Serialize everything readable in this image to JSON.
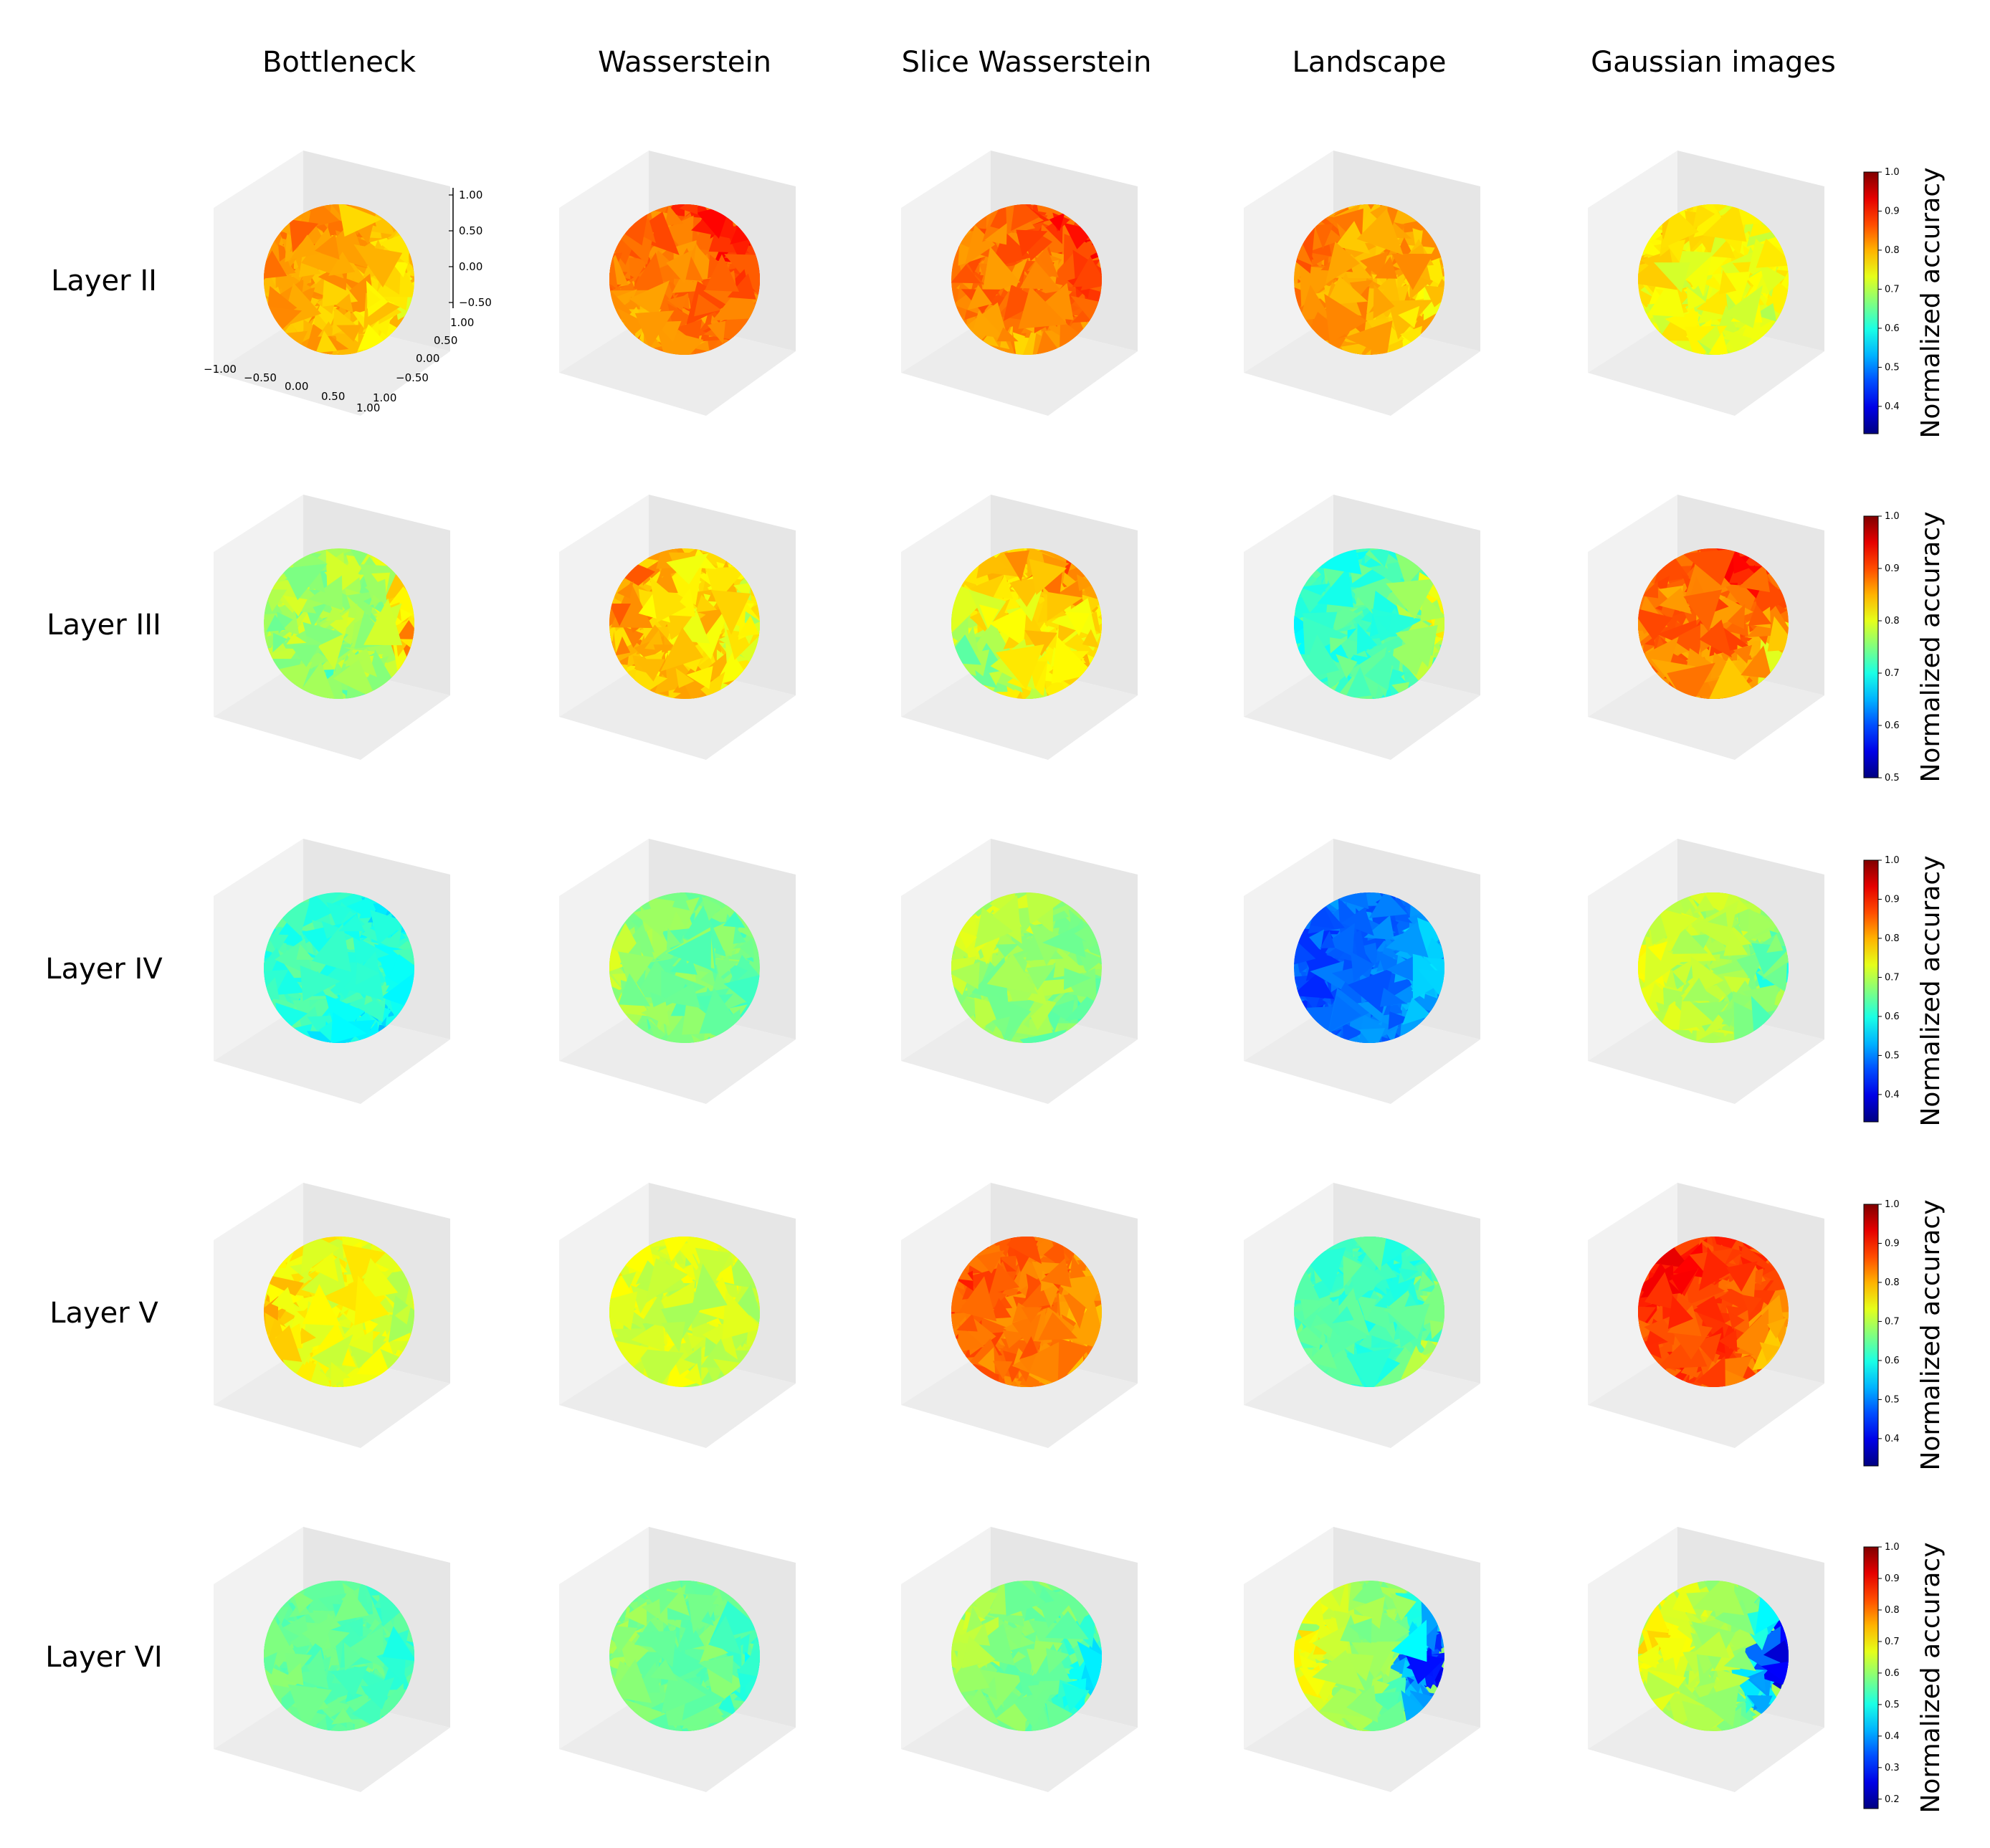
{
  "chart_data": {
    "type": "heatmap",
    "description_type": "grid of 3D sphere surfaces colored by normalized accuracy",
    "column_titles": [
      "Bottleneck",
      "Wasserstein",
      "Slice Wasserstein",
      "Landscape",
      "Gaussian images"
    ],
    "row_titles": [
      "Layer II",
      "Layer III",
      "Layer IV",
      "Layer V",
      "Layer VI"
    ],
    "colormap": "jet",
    "axis_ticks": {
      "z": [
        "1.00",
        "0.50",
        "0.00",
        "−0.50"
      ],
      "y": [
        "1.00",
        "0.50",
        "0.00",
        "−0.50",
        "1.00"
      ],
      "x": [
        "−1.00",
        "−0.50",
        "0.00",
        "0.50",
        "1.00"
      ]
    },
    "colorbars": [
      {
        "label": "Normalized accuracy",
        "range": [
          0.33,
          1.0
        ],
        "ticks": [
          "0.4",
          "0.5",
          "0.6",
          "0.7",
          "0.8",
          "0.9",
          "1.0"
        ]
      },
      {
        "label": "Normalized accuracy",
        "range": [
          0.5,
          1.0
        ],
        "ticks": [
          "0.5",
          "0.6",
          "0.7",
          "0.8",
          "0.9",
          "1.0"
        ]
      },
      {
        "label": "Normalized accuracy",
        "range": [
          0.33,
          1.0
        ],
        "ticks": [
          "0.4",
          "0.5",
          "0.6",
          "0.7",
          "0.8",
          "0.9",
          "1.0"
        ]
      },
      {
        "label": "Normalized accuracy",
        "range": [
          0.33,
          1.0
        ],
        "ticks": [
          "0.4",
          "0.5",
          "0.6",
          "0.7",
          "0.8",
          "0.9",
          "1.0"
        ]
      },
      {
        "label": "Normalized accuracy",
        "range": [
          0.17,
          1.0
        ],
        "ticks": [
          "0.2",
          "0.3",
          "0.4",
          "0.5",
          "0.6",
          "0.7",
          "0.8",
          "0.9",
          "1.0"
        ]
      }
    ],
    "cells": [
      [
        {
          "base": 0.8,
          "regions": [
            {
              "v": 0.74,
              "a": 20,
              "r": 0.45
            },
            {
              "v": 0.83,
              "a": 220,
              "r": 0.55
            }
          ]
        },
        {
          "base": 0.84,
          "regions": [
            {
              "v": 0.9,
              "a": 320,
              "r": 0.4
            },
            {
              "v": 0.8,
              "a": 120,
              "r": 0.4
            }
          ]
        },
        {
          "base": 0.84,
          "regions": [
            {
              "v": 0.9,
              "a": 320,
              "r": 0.45
            },
            {
              "v": 0.8,
              "a": 100,
              "r": 0.35
            }
          ]
        },
        {
          "base": 0.81,
          "regions": [
            {
              "v": 0.76,
              "a": 40,
              "r": 0.5
            },
            {
              "v": 0.84,
              "a": 200,
              "r": 0.4
            }
          ]
        },
        {
          "base": 0.74,
          "regions": [
            {
              "v": 0.78,
              "a": 230,
              "r": 0.4
            },
            {
              "v": 0.72,
              "a": 60,
              "r": 0.4
            }
          ]
        }
      ],
      [
        {
          "base": 0.77,
          "regions": [
            {
              "v": 0.74,
              "a": 100,
              "r": 0.4
            },
            {
              "v": 0.85,
              "a": 0,
              "r": 0.25
            }
          ]
        },
        {
          "base": 0.83,
          "regions": [
            {
              "v": 0.87,
              "a": 200,
              "r": 0.5
            },
            {
              "v": 0.79,
              "a": 0,
              "r": 0.3
            }
          ]
        },
        {
          "base": 0.82,
          "regions": [
            {
              "v": 0.88,
              "a": 300,
              "r": 0.45
            },
            {
              "v": 0.76,
              "a": 140,
              "r": 0.45
            }
          ]
        },
        {
          "base": 0.72,
          "regions": [
            {
              "v": 0.8,
              "a": 0,
              "r": 0.45
            },
            {
              "v": 0.71,
              "a": 180,
              "r": 0.5
            }
          ]
        },
        {
          "base": 0.88,
          "regions": [
            {
              "v": 0.92,
              "a": 300,
              "r": 0.45
            },
            {
              "v": 0.82,
              "a": 20,
              "r": 0.35
            }
          ]
        }
      ],
      [
        {
          "base": 0.62,
          "regions": [
            {
              "v": 0.55,
              "a": 60,
              "r": 0.3
            },
            {
              "v": 0.58,
              "a": 300,
              "r": 0.3
            }
          ]
        },
        {
          "base": 0.66,
          "regions": [
            {
              "v": 0.7,
              "a": 180,
              "r": 0.4
            },
            {
              "v": 0.64,
              "a": 0,
              "r": 0.3
            }
          ]
        },
        {
          "base": 0.68,
          "regions": [
            {
              "v": 0.73,
              "a": 220,
              "r": 0.45
            },
            {
              "v": 0.64,
              "a": 30,
              "r": 0.35
            }
          ]
        },
        {
          "base": 0.49,
          "regions": [
            {
              "v": 0.55,
              "a": 0,
              "r": 0.4
            },
            {
              "v": 0.46,
              "a": 180,
              "r": 0.5
            }
          ]
        },
        {
          "base": 0.7,
          "regions": [
            {
              "v": 0.74,
              "a": 190,
              "r": 0.45
            },
            {
              "v": 0.62,
              "a": 10,
              "r": 0.35
            }
          ]
        }
      ],
      [
        {
          "base": 0.74,
          "regions": [
            {
              "v": 0.78,
              "a": 180,
              "r": 0.45
            },
            {
              "v": 0.72,
              "a": 0,
              "r": 0.4
            }
          ]
        },
        {
          "base": 0.72,
          "regions": [
            {
              "v": 0.74,
              "a": 200,
              "r": 0.4
            },
            {
              "v": 0.71,
              "a": 20,
              "r": 0.4
            }
          ]
        },
        {
          "base": 0.84,
          "regions": [
            {
              "v": 0.87,
              "a": 200,
              "r": 0.45
            },
            {
              "v": 0.8,
              "a": 20,
              "r": 0.35
            }
          ]
        },
        {
          "base": 0.62,
          "regions": [
            {
              "v": 0.64,
              "a": 180,
              "r": 0.5
            },
            {
              "v": 0.7,
              "a": 20,
              "r": 0.3
            }
          ]
        },
        {
          "base": 0.87,
          "regions": [
            {
              "v": 0.91,
              "a": 230,
              "r": 0.45
            },
            {
              "v": 0.8,
              "a": 20,
              "r": 0.35
            }
          ]
        }
      ],
      [
        {
          "base": 0.56,
          "regions": [
            {
              "v": 0.58,
              "a": 180,
              "r": 0.45
            },
            {
              "v": 0.52,
              "a": 0,
              "r": 0.3
            }
          ]
        },
        {
          "base": 0.57,
          "regions": [
            {
              "v": 0.6,
              "a": 200,
              "r": 0.45
            },
            {
              "v": 0.5,
              "a": 10,
              "r": 0.3
            }
          ]
        },
        {
          "base": 0.58,
          "regions": [
            {
              "v": 0.63,
              "a": 200,
              "r": 0.5
            },
            {
              "v": 0.48,
              "a": 20,
              "r": 0.45
            }
          ]
        },
        {
          "base": 0.6,
          "regions": [
            {
              "v": 0.72,
              "a": 190,
              "r": 0.5
            },
            {
              "v": 0.25,
              "a": 10,
              "r": 0.45
            }
          ]
        },
        {
          "base": 0.62,
          "regions": [
            {
              "v": 0.72,
              "a": 200,
              "r": 0.45
            },
            {
              "v": 0.25,
              "a": 10,
              "r": 0.4
            }
          ]
        }
      ]
    ]
  }
}
